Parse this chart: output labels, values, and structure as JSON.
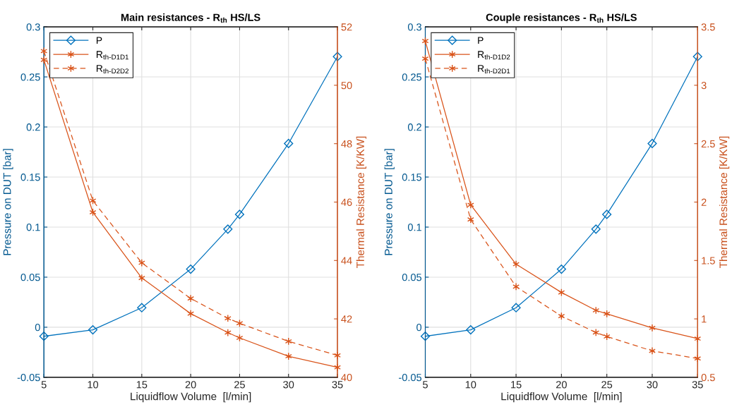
{
  "chart_data": [
    {
      "type": "line",
      "title": "Main resistances - R$_{th}$ HS/LS",
      "xlabel": "Liquidflow Volume  [l/min]",
      "ylabel": "Pressure on DUT [bar]",
      "y2label": "Thermal Resistance [K/KW]",
      "x": [
        5,
        10,
        15,
        20,
        23.8,
        25,
        30,
        35
      ],
      "xlim": [
        5,
        35
      ],
      "xticks": [
        5,
        10,
        15,
        20,
        25,
        30,
        35
      ],
      "ylim": [
        -0.05,
        0.3
      ],
      "yticks": [
        -0.05,
        0,
        0.05,
        0.1,
        0.15,
        0.2,
        0.25,
        0.3
      ],
      "y2lim": [
        40,
        52
      ],
      "y2ticks": [
        40,
        42,
        44,
        46,
        48,
        50,
        52
      ],
      "grid": true,
      "legend": "top left",
      "series": [
        {
          "name": "P",
          "color": "#0072bd",
          "marker": "diamond",
          "line_style": "solid",
          "values": [
            -0.009,
            -0.0026,
            0.0195,
            0.058,
            0.098,
            0.1127,
            0.1835,
            0.2703
          ]
        },
        {
          "name": "R$_{th-D1D1}$",
          "color": "#d95319",
          "marker": "cross",
          "line_style": "solid",
          "axis": "y2",
          "values": [
            50.87,
            45.65,
            43.4,
            42.18,
            41.53,
            41.35,
            40.72,
            40.34
          ]
        },
        {
          "name": "R$_{th-D2D2}$",
          "color": "#d95319",
          "marker": "cross",
          "line_style": "dashed",
          "axis": "y2",
          "values": [
            51.17,
            46.05,
            43.92,
            42.7,
            42.02,
            41.85,
            41.23,
            40.75
          ]
        }
      ]
    },
    {
      "type": "line",
      "title": "Couple resistances - R$_{th}$ HS/LS",
      "xlabel": "Liquidflow Volume  [l/min]",
      "ylabel": "Pressure on DUT [bar]",
      "y2label": "Thermal Resistance [K/KW]",
      "x": [
        5,
        10,
        15,
        20,
        23.8,
        25,
        30,
        35
      ],
      "xlim": [
        5,
        35
      ],
      "xticks": [
        5,
        10,
        15,
        20,
        25,
        30,
        35
      ],
      "ylim": [
        -0.05,
        0.3
      ],
      "yticks": [
        -0.05,
        0,
        0.05,
        0.1,
        0.15,
        0.2,
        0.25,
        0.3
      ],
      "y2lim": [
        0.5,
        3.5
      ],
      "y2ticks": [
        0.5,
        1,
        1.5,
        2,
        2.5,
        3,
        3.5
      ],
      "grid": true,
      "legend": "top left",
      "series": [
        {
          "name": "P",
          "color": "#0072bd",
          "marker": "diamond",
          "line_style": "solid",
          "values": [
            -0.009,
            -0.0026,
            0.0195,
            0.058,
            0.098,
            0.1127,
            0.1835,
            0.2703
          ]
        },
        {
          "name": "R$_{th-D1D2}$",
          "color": "#d95319",
          "marker": "cross",
          "line_style": "solid",
          "axis": "y2",
          "values": [
            3.379,
            1.976,
            1.468,
            1.226,
            1.073,
            1.044,
            0.923,
            0.831
          ]
        },
        {
          "name": "R$_{th-D2D1}$",
          "color": "#d95319",
          "marker": "cross",
          "line_style": "dashed",
          "axis": "y2",
          "values": [
            3.228,
            1.851,
            1.276,
            1.024,
            0.883,
            0.849,
            0.726,
            0.661
          ]
        }
      ]
    }
  ]
}
